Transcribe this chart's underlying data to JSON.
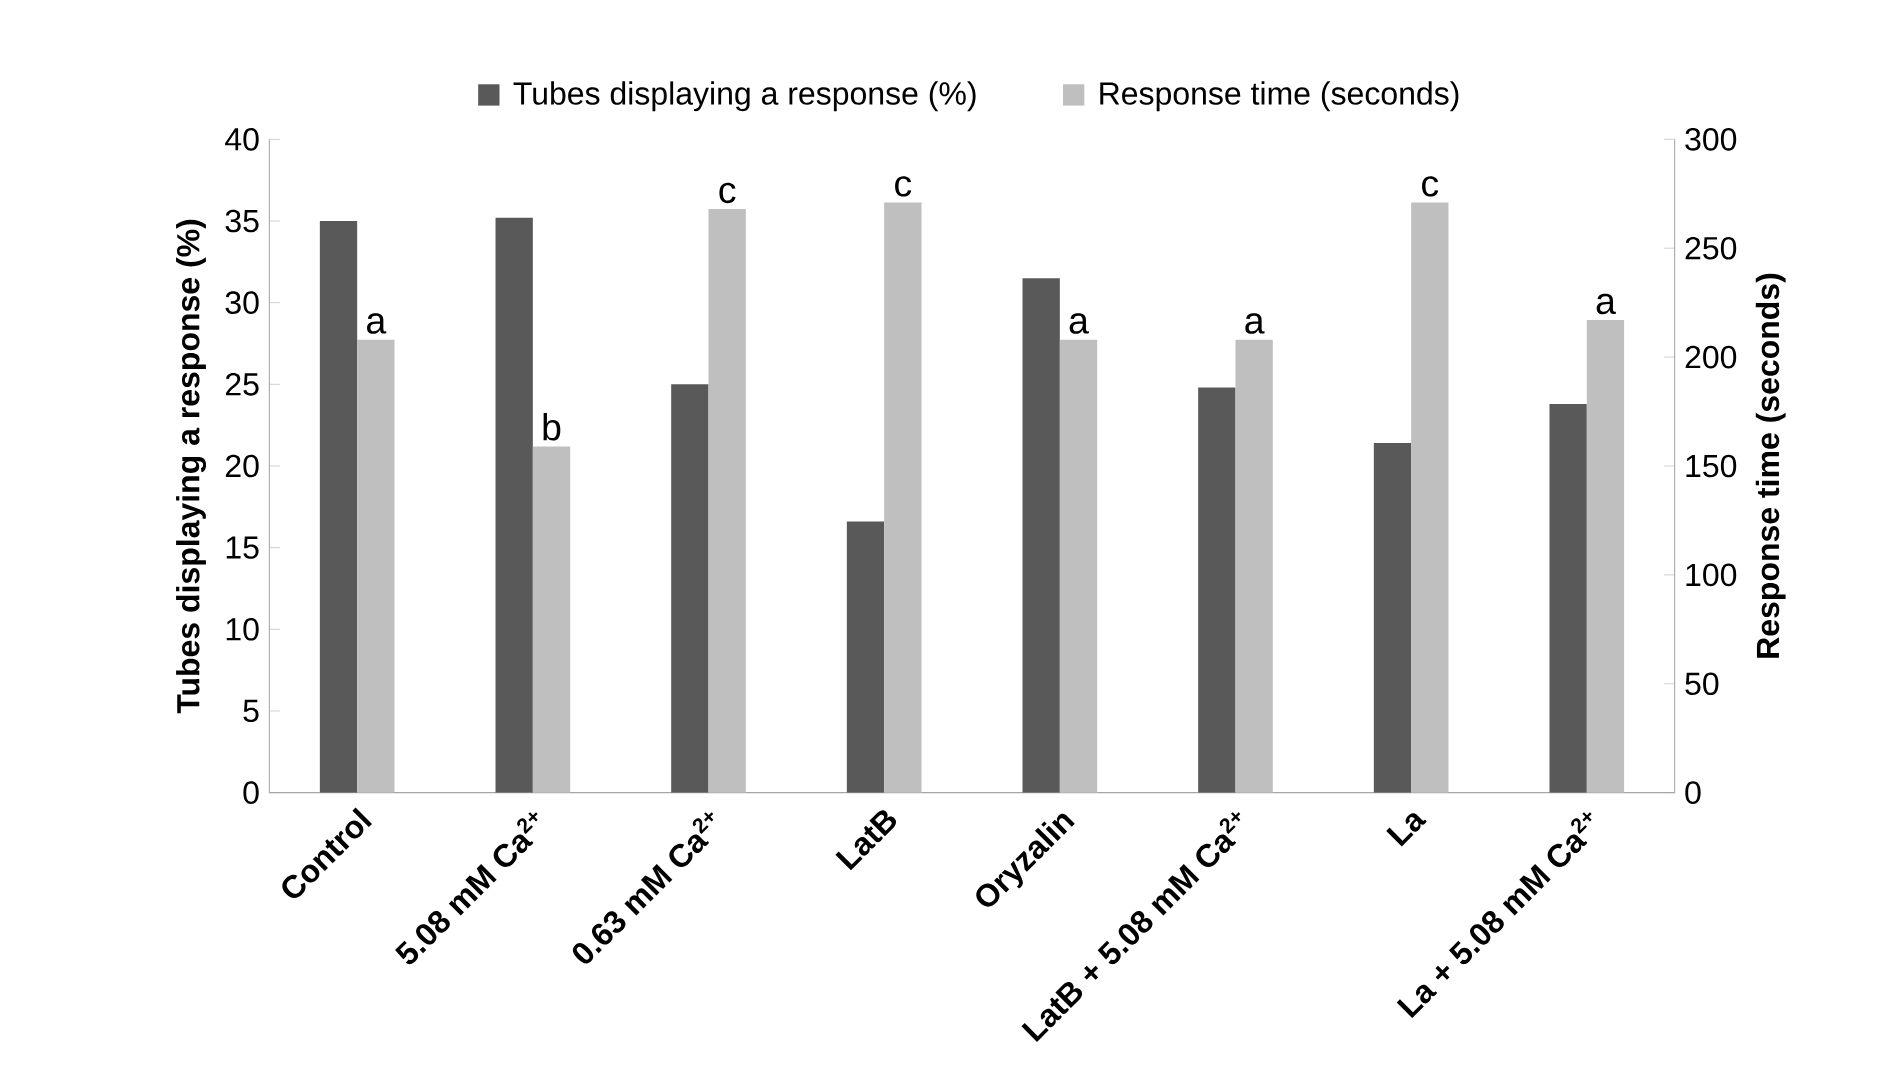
{
  "chart_data": {
    "type": "bar",
    "ylabel": "Tubes displaying a response (%)",
    "y2label": "Response time (seconds)",
    "categories": [
      "Control",
      "5.08 mM Ca$^{2+}$",
      "0.63 mM Ca$^{2+}$",
      "LatB",
      "Oryzalin",
      "LatB + 5.08 mM Ca$^{2+}$",
      "La",
      "La + 5.08 mM Ca$^{2+}$"
    ],
    "series": [
      {
        "name": "Tubes displaying a response (%)",
        "color": "#595959",
        "values": [
          35,
          35.2,
          25,
          16.6,
          31.5,
          24.8,
          21.4,
          23.8
        ]
      },
      {
        "name": "Response time (seconds)",
        "color": "#bfbfbf",
        "axis": "y2",
        "values": [
          208,
          159,
          268,
          271,
          208,
          208,
          271,
          217
        ]
      }
    ],
    "ylim": [
      0,
      40
    ],
    "yticks": [
      0,
      5,
      10,
      15,
      20,
      25,
      30,
      35,
      40
    ],
    "y2lim": [
      0,
      300
    ],
    "y2ticks": [
      0,
      50,
      100,
      150,
      200,
      250,
      300
    ],
    "annotations": [
      "a",
      "b",
      "c",
      "c",
      "a",
      "a",
      "c",
      "a"
    ],
    "legend": "top",
    "grid": false
  }
}
